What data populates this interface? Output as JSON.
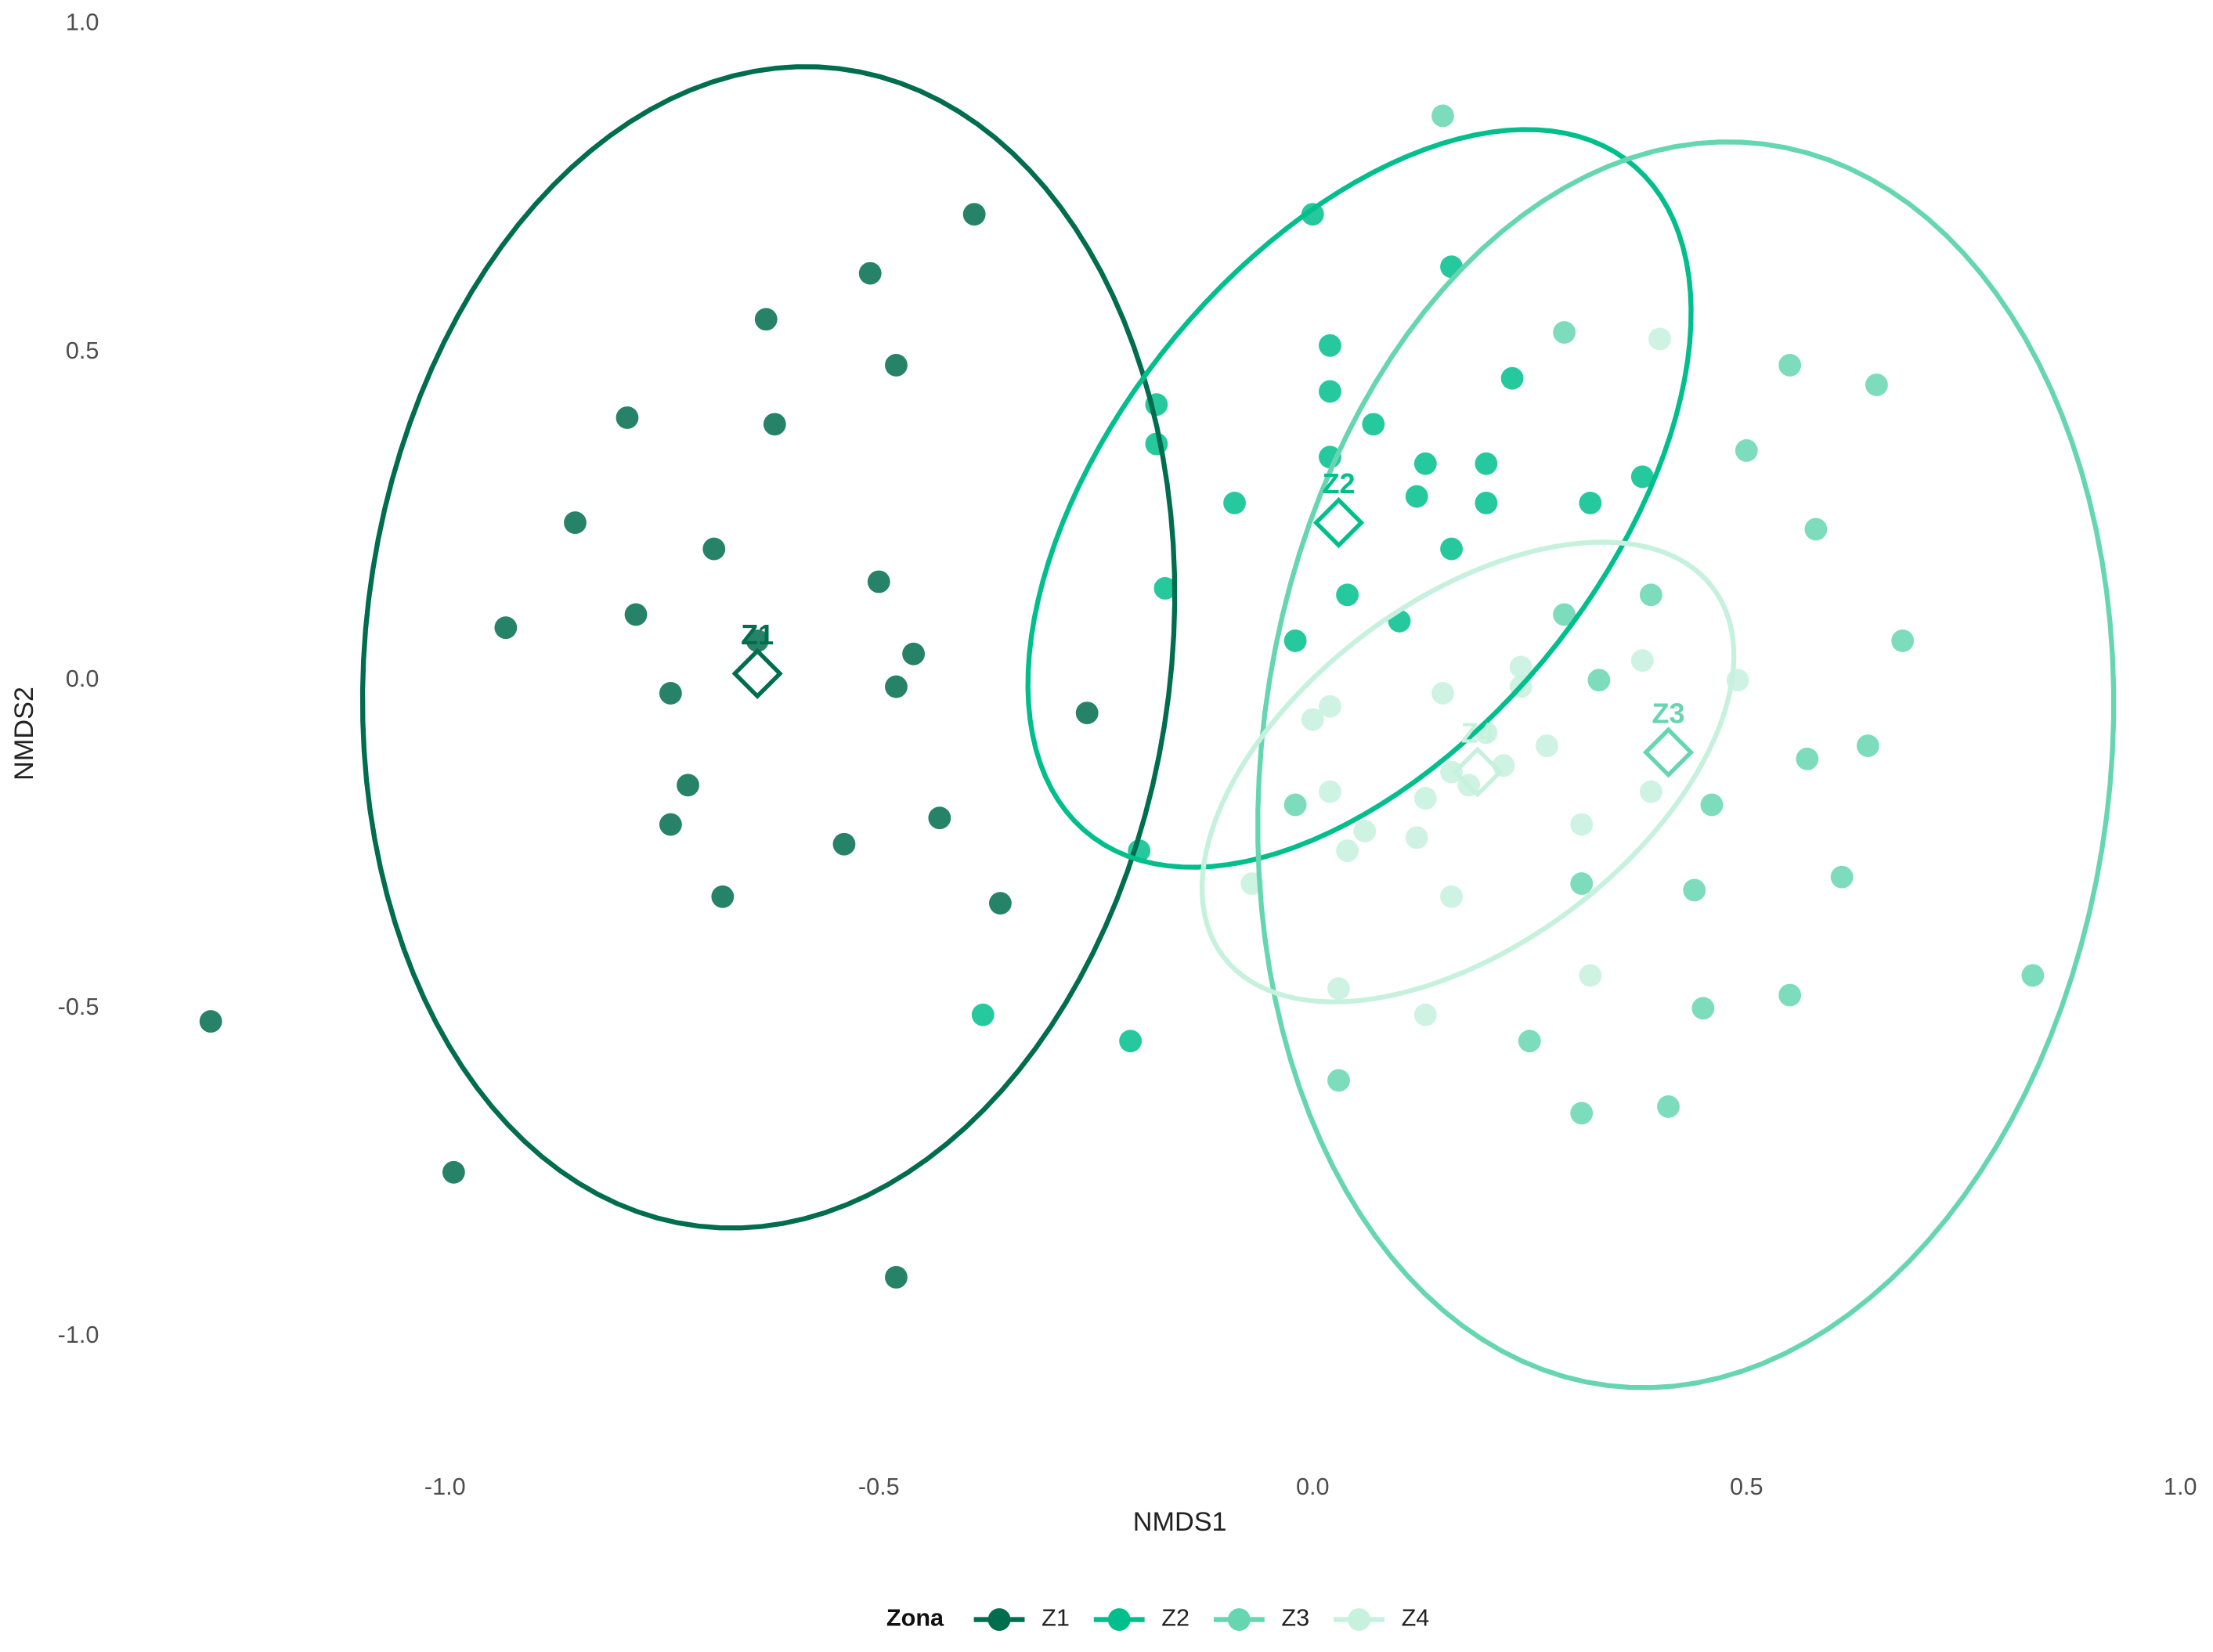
{
  "chart_data": {
    "type": "scatter",
    "x_label": "NMDS1",
    "y_label": "NMDS2",
    "legend_title": "Zona",
    "legend_position": "bottom",
    "grid": false,
    "xlim": [
      -1.35,
      1.0
    ],
    "ylim": [
      -1.15,
      1.0
    ],
    "xticks": [
      {
        "value": -1,
        "label": "-1.0"
      },
      -0.5,
      {
        "value": 0,
        "label": "0.0"
      },
      0.5,
      {
        "value": 1,
        "label": "1.0"
      }
    ],
    "yticks": [
      {
        "value": -1,
        "label": "-1.0"
      },
      -0.5,
      {
        "value": 0,
        "label": "0.0"
      },
      0.5,
      {
        "value": 1,
        "label": "1.0"
      }
    ],
    "series": [
      {
        "name": "Z1",
        "color": "#006D4E",
        "x": [
          -0.39,
          -0.51,
          -0.63,
          -0.48,
          -0.79,
          -0.62,
          -0.85,
          -0.69,
          -0.5,
          -0.78,
          -0.93,
          -0.64,
          -0.46,
          -0.48,
          -0.74,
          -0.26,
          -0.72,
          -0.74,
          -0.43,
          -0.54,
          -0.68,
          -0.36,
          -1.27,
          -0.99,
          -0.48
        ],
        "y": [
          0.71,
          0.62,
          0.55,
          0.48,
          0.4,
          0.39,
          0.24,
          0.2,
          0.15,
          0.1,
          0.08,
          0.06,
          0.04,
          -0.01,
          -0.02,
          -0.05,
          -0.16,
          -0.22,
          -0.21,
          -0.25,
          -0.33,
          -0.34,
          -0.52,
          -0.75,
          -0.91
        ],
        "centroid": [
          -0.64,
          0.01
        ],
        "ellipse": {
          "center": [
            -0.627,
            0.05
          ],
          "axis1": [
            0.081,
            0.882
          ],
          "axis2": [
            0.461,
            -0.073
          ]
        }
      },
      {
        "name": "Z2",
        "color": "#00BF8C",
        "x": [
          0.0,
          0.16,
          0.02,
          0.02,
          0.23,
          -0.18,
          0.07,
          -0.18,
          0.02,
          0.13,
          0.2,
          0.38,
          0.12,
          0.2,
          -0.09,
          0.32,
          0.16,
          -0.17,
          0.04,
          0.1,
          -0.02,
          -0.2,
          -0.38,
          -0.21
        ],
        "y": [
          0.71,
          0.63,
          0.51,
          0.44,
          0.46,
          0.42,
          0.39,
          0.36,
          0.34,
          0.33,
          0.33,
          0.31,
          0.28,
          0.27,
          0.27,
          0.27,
          0.2,
          0.14,
          0.13,
          0.09,
          0.06,
          -0.26,
          -0.51,
          -0.55
        ],
        "centroid": [
          0.03,
          0.24
        ],
        "ellipse": {
          "center": [
            0.054,
            0.277
          ],
          "axis1": [
            0.318,
            0.505
          ],
          "axis2": [
            0.212,
            -0.247
          ]
        }
      },
      {
        "name": "Z3",
        "color": "#66D6B0",
        "x": [
          0.15,
          0.29,
          0.55,
          0.65,
          0.5,
          0.58,
          0.29,
          0.39,
          0.68,
          0.33,
          0.64,
          0.57,
          0.46,
          -0.02,
          0.31,
          0.44,
          0.61,
          0.83,
          0.55,
          0.45,
          0.25,
          0.03,
          0.31,
          0.41
        ],
        "y": [
          0.86,
          0.53,
          0.48,
          0.45,
          0.35,
          0.23,
          0.1,
          0.13,
          0.06,
          0.0,
          -0.1,
          -0.12,
          -0.19,
          -0.19,
          -0.31,
          -0.32,
          -0.3,
          -0.45,
          -0.48,
          -0.5,
          -0.55,
          -0.61,
          -0.66,
          -0.65
        ],
        "centroid": [
          0.41,
          -0.11
        ],
        "ellipse": {
          "center": [
            0.43,
            -0.129
          ],
          "axis1": [
            0.09,
            0.946
          ],
          "axis2": [
            0.485,
            -0.08
          ]
        }
      },
      {
        "name": "Z4",
        "color": "#C6F1DD",
        "x": [
          0.4,
          0.38,
          0.49,
          0.24,
          0.24,
          0.15,
          0.02,
          0.0,
          0.2,
          0.27,
          0.22,
          0.16,
          0.18,
          0.02,
          0.13,
          0.39,
          0.31,
          0.06,
          0.12,
          0.04,
          -0.07,
          0.16,
          0.32,
          0.03,
          0.13
        ],
        "y": [
          0.52,
          0.03,
          0.0,
          0.02,
          -0.01,
          -0.02,
          -0.04,
          -0.06,
          -0.08,
          -0.1,
          -0.13,
          -0.14,
          -0.16,
          -0.17,
          -0.18,
          -0.17,
          -0.22,
          -0.23,
          -0.24,
          -0.26,
          -0.31,
          -0.33,
          -0.45,
          -0.47,
          -0.51
        ],
        "centroid": [
          0.19,
          -0.14
        ],
        "ellipse": {
          "center": [
            0.179,
            -0.14
          ],
          "axis1": [
            0.293,
            0.258
          ],
          "axis2": [
            0.09,
            -0.237
          ]
        }
      }
    ]
  }
}
